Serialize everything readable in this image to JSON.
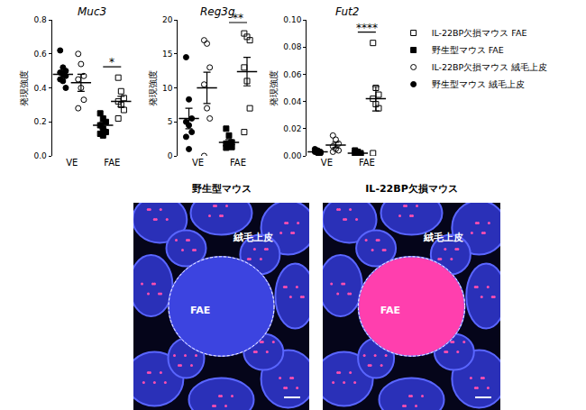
{
  "chart_data": [
    {
      "type": "scatter",
      "title": "Muc3",
      "y_label": "発現強度",
      "categories": [
        "VE",
        "FAE"
      ],
      "ylim": [
        0,
        0.8
      ],
      "yticks": [
        {
          "value": 0,
          "label": "0.0"
        },
        0.2,
        0.4,
        0.6,
        0.8
      ],
      "grid": false,
      "series": [
        {
          "name": "野生型マウス 絨毛上皮",
          "marker": "circle",
          "color": "#000000",
          "values": [
            [
              0.62,
              0.52,
              0.5,
              0.49,
              0.48,
              0.47,
              0.45,
              0.44,
              0.4
            ],
            null
          ],
          "mean": [
            0.48,
            null
          ],
          "sem": [
            0.02,
            null
          ]
        },
        {
          "name": "IL-22BP欠損マウス 絨毛上皮",
          "marker": "circle-open",
          "color": "#000000",
          "values": [
            [
              0.6,
              0.54,
              0.47,
              0.45,
              0.4,
              0.33,
              0.28
            ],
            null
          ],
          "mean": [
            0.43,
            null
          ],
          "sem": [
            0.05,
            null
          ]
        },
        {
          "name": "野生型マウス FAE",
          "marker": "square",
          "color": "#000000",
          "values": [
            null,
            [
              0.25,
              0.22,
              0.2,
              0.18,
              0.16,
              0.14,
              0.13,
              0.12
            ]
          ],
          "mean": [
            null,
            0.18
          ],
          "sem": [
            null,
            0.02
          ]
        },
        {
          "name": "IL-22BP欠損マウス FAE",
          "marker": "square-open",
          "color": "#000000",
          "values": [
            null,
            [
              0.46,
              0.38,
              0.34,
              0.32,
              0.3,
              0.27,
              0.22
            ]
          ],
          "mean": [
            null,
            0.32
          ],
          "sem": [
            null,
            0.03
          ]
        }
      ],
      "annotations": [
        {
          "category": "FAE",
          "text": "*"
        }
      ]
    },
    {
      "type": "scatter",
      "title": "Reg3g",
      "y_label": "発現強度",
      "categories": [
        "VE",
        "FAE"
      ],
      "ylim": [
        0,
        20
      ],
      "yticks": [
        0,
        5,
        10,
        15,
        20
      ],
      "grid": false,
      "series": [
        {
          "name": "野生型マウス 絨毛上皮",
          "marker": "circle",
          "color": "#000000",
          "values": [
            [
              14.5,
              8.3,
              5.5,
              5.0,
              4.5,
              3.5,
              2.8,
              1.0
            ],
            null
          ],
          "mean": [
            5.5,
            null
          ],
          "sem": [
            1.5,
            null
          ]
        },
        {
          "name": "IL-22BP欠損マウス 絨毛上皮",
          "marker": "circle-open",
          "color": "#000000",
          "values": [
            [
              17,
              16.5,
              13,
              10.5,
              7,
              5.5,
              0
            ],
            null
          ],
          "mean": [
            10,
            null
          ],
          "sem": [
            2.3,
            null
          ]
        },
        {
          "name": "野生型マウス FAE",
          "marker": "square",
          "color": "#000000",
          "values": [
            null,
            [
              4.0,
              3.0,
              2.0,
              1.8,
              1.5,
              1.3,
              1.2
            ]
          ],
          "mean": [
            null,
            2
          ],
          "sem": [
            null,
            0.4
          ]
        },
        {
          "name": "IL-22BP欠損マウス FAE",
          "marker": "square-open",
          "color": "#000000",
          "values": [
            null,
            [
              18,
              17.5,
              17,
              13,
              11,
              7,
              3.5
            ]
          ],
          "mean": [
            null,
            12.4
          ],
          "sem": [
            null,
            2.1
          ]
        }
      ],
      "annotations": [
        {
          "category": "FAE",
          "text": "**"
        }
      ]
    },
    {
      "type": "scatter",
      "title": "Fut2",
      "y_label": "発現強度",
      "categories": [
        "VE",
        "FAE"
      ],
      "ylim": [
        0,
        0.1
      ],
      "yticks": [
        {
          "value": 0,
          "label": "0.00"
        },
        {
          "value": 0.02,
          "label": "0.02"
        },
        {
          "value": 0.04,
          "label": "0.04"
        },
        {
          "value": 0.06,
          "label": "0.06"
        },
        {
          "value": 0.08,
          "label": "0.08"
        },
        {
          "value": 0.1,
          "label": "0.10"
        }
      ],
      "grid": false,
      "series": [
        {
          "name": "野生型マウス 絨毛上皮",
          "marker": "circle",
          "color": "#000000",
          "values": [
            [
              0.005,
              0.004,
              0.003,
              0.003,
              0.002,
              0.002
            ],
            null
          ],
          "mean": [
            0.003,
            null
          ],
          "sem": [
            0.0005,
            null
          ]
        },
        {
          "name": "IL-22BP欠損マウス 絨毛上皮",
          "marker": "circle-open",
          "color": "#000000",
          "values": [
            [
              0.015,
              0.012,
              0.009,
              0.007,
              0.005,
              0.004,
              0.003
            ],
            null
          ],
          "mean": [
            0.008,
            null
          ],
          "sem": [
            0.002,
            null
          ]
        },
        {
          "name": "野生型マウス FAE",
          "marker": "square",
          "color": "#000000",
          "values": [
            null,
            [
              0.004,
              0.003,
              0.002,
              0.002,
              0.001,
              0.001
            ]
          ],
          "mean": [
            null,
            0.002
          ],
          "sem": [
            null,
            0.0005
          ]
        },
        {
          "name": "IL-22BP欠損マウス FAE",
          "marker": "square-open",
          "color": "#000000",
          "values": [
            null,
            [
              0.083,
              0.05,
              0.045,
              0.042,
              0.038,
              0.035,
              0.002
            ]
          ],
          "mean": [
            null,
            0.042
          ],
          "sem": [
            null,
            0.009
          ]
        }
      ],
      "annotations": [
        {
          "category": "FAE",
          "text": "****"
        }
      ]
    }
  ],
  "micrographs": [
    {
      "title": "野生型マウス",
      "villus_label": "絨毛上皮",
      "fae_label": "FAE",
      "fae_color": "#3c44e0"
    },
    {
      "title": "IL-22BP欠損マウス",
      "villus_label": "絨毛上皮",
      "fae_label": "FAE",
      "fae_color": "#ff3fae"
    }
  ]
}
